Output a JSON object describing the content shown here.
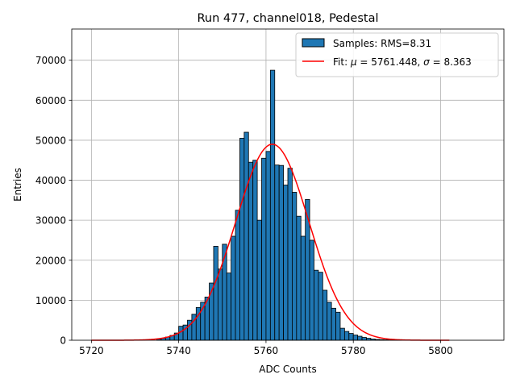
{
  "chart_data": {
    "type": "bar",
    "title": "Run 477, channel018, Pedestal",
    "xlabel": "ADC Counts",
    "ylabel": "Entries",
    "xlim": [
      5715.5,
      5814.5
    ],
    "ylim": [
      0,
      77800
    ],
    "xticks": [
      5720,
      5740,
      5760,
      5780,
      5800
    ],
    "xtick_labels": [
      "5720",
      "5740",
      "5760",
      "5780",
      "5800"
    ],
    "yticks": [
      0,
      10000,
      20000,
      30000,
      40000,
      50000,
      60000,
      70000
    ],
    "ytick_labels": [
      "0",
      "10000",
      "20000",
      "30000",
      "40000",
      "50000",
      "60000",
      "70000"
    ],
    "grid": true,
    "legend_position": "top-right",
    "bin_width": 1,
    "series": [
      {
        "name": "Samples: RMS=8.31",
        "type": "histogram",
        "color": "#1f77b4",
        "edgecolor": "#000000",
        "x": [
          5735,
          5736,
          5737,
          5738,
          5739,
          5740,
          5741,
          5742,
          5743,
          5744,
          5745,
          5746,
          5747,
          5748,
          5749,
          5750,
          5751,
          5752,
          5753,
          5754,
          5755,
          5756,
          5757,
          5758,
          5759,
          5760,
          5761,
          5762,
          5763,
          5764,
          5765,
          5766,
          5767,
          5768,
          5769,
          5770,
          5771,
          5772,
          5773,
          5774,
          5775,
          5776,
          5777,
          5778,
          5779,
          5780,
          5781,
          5782,
          5783,
          5784,
          5785,
          5786,
          5787,
          5788,
          5789,
          5790
        ],
        "values": [
          300,
          500,
          800,
          1200,
          1800,
          3500,
          3800,
          5000,
          6500,
          8200,
          9500,
          10800,
          14300,
          23500,
          17800,
          24000,
          16800,
          26000,
          32500,
          50500,
          52000,
          44500,
          45000,
          30000,
          45500,
          47200,
          67500,
          43800,
          43700,
          38800,
          43000,
          37000,
          31000,
          26000,
          35200,
          25000,
          17500,
          17000,
          12500,
          9500,
          8000,
          7000,
          3000,
          2200,
          1700,
          1300,
          1000,
          700,
          500,
          300,
          200,
          150,
          100,
          60,
          40,
          20
        ]
      },
      {
        "name": "Fit: μ = 5761.448, σ = 8.363",
        "type": "line",
        "color": "#ff0000",
        "mu": 5761.448,
        "sigma": 8.363,
        "amplitude": 49000,
        "x_range": [
          5720,
          5802
        ]
      }
    ]
  },
  "legend": {
    "samples_label": "Samples: RMS=8.31",
    "fit_label_prefix": "Fit: ",
    "fit_mu_symbol": "μ",
    "fit_mu_value": " = 5761.448, ",
    "fit_sigma_symbol": "σ",
    "fit_sigma_value": " = 8.363"
  }
}
